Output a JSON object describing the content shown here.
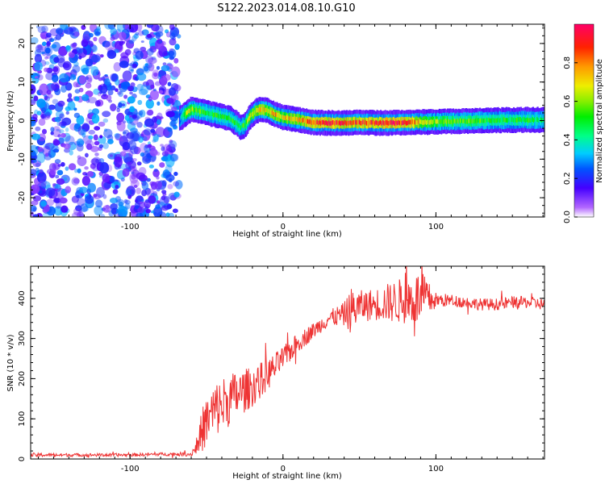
{
  "title": "S122.2023.014.08.10.G10",
  "chart_data": [
    {
      "type": "heatmap",
      "xlabel": "Height of straight line (km)",
      "ylabel": "Frequency (Hz)",
      "xlim": [
        -165,
        171
      ],
      "ylim": [
        -25,
        25
      ],
      "x_ticks": [
        -100,
        0,
        100
      ],
      "y_ticks": [
        -20,
        -10,
        0,
        10,
        20
      ],
      "colorbar": {
        "label": "Normalized spectral amplitude",
        "range": [
          0.0,
          1.0
        ],
        "ticks": [
          "0.0",
          "0.2",
          "0.4",
          "0.6",
          "0.8"
        ],
        "colormap": "gist_ncar_r"
      },
      "noise_region_x": [
        -165,
        -68
      ],
      "noise_level": 0.15,
      "signal_trace": {
        "x": [
          -68,
          -65,
          -62,
          -60,
          -55,
          -50,
          -45,
          -40,
          -35,
          -30,
          -28,
          -25,
          -22,
          -18,
          -15,
          -10,
          -5,
          0,
          10,
          20,
          30,
          40,
          50,
          60,
          70,
          80,
          90,
          100,
          120,
          140,
          160,
          171
        ],
        "frequency": [
          0.5,
          1.5,
          2.5,
          3.0,
          2.5,
          2.0,
          1.5,
          1.0,
          0.5,
          -1.0,
          -1.8,
          -1.0,
          1.0,
          2.5,
          3.0,
          2.5,
          1.5,
          0.8,
          0.2,
          -0.5,
          -0.6,
          -0.6,
          -0.5,
          -0.6,
          -0.6,
          -0.5,
          -0.4,
          -0.3,
          -0.1,
          0.1,
          0.2,
          0.2
        ],
        "amplitude": [
          0.25,
          0.55,
          0.65,
          0.6,
          0.55,
          0.5,
          0.5,
          0.5,
          0.5,
          0.5,
          0.45,
          0.55,
          0.65,
          0.7,
          0.75,
          0.7,
          0.75,
          0.7,
          0.75,
          0.9,
          0.92,
          0.9,
          0.88,
          0.9,
          0.92,
          0.9,
          0.7,
          0.6,
          0.55,
          0.5,
          0.5,
          0.45
        ]
      }
    },
    {
      "type": "line",
      "xlabel": "Height of straight line (km)",
      "ylabel": "SNR (10 * v/v)",
      "xlim": [
        -165,
        171
      ],
      "ylim": [
        0,
        480
      ],
      "x_ticks": [
        -100,
        0,
        100
      ],
      "y_ticks": [
        0,
        100,
        200,
        300,
        400
      ],
      "color": "#ee3333",
      "trend": {
        "x": [
          -165,
          -140,
          -120,
          -100,
          -80,
          -60,
          -57,
          -52,
          -45,
          -38,
          -30,
          -20,
          -10,
          0,
          10,
          20,
          30,
          40,
          45,
          50,
          60,
          70,
          80,
          90,
          100,
          110,
          120,
          130,
          140,
          150,
          160,
          171
        ],
        "y": [
          10,
          10,
          10,
          10,
          12,
          12,
          30,
          80,
          120,
          140,
          160,
          180,
          210,
          250,
          290,
          320,
          350,
          360,
          370,
          380,
          385,
          390,
          395,
          400,
          395,
          395,
          390,
          385,
          385,
          390,
          390,
          385
        ],
        "noise_amplitude": [
          5,
          4,
          4,
          4,
          4,
          5,
          20,
          60,
          70,
          70,
          60,
          50,
          40,
          30,
          25,
          20,
          20,
          30,
          60,
          40,
          40,
          50,
          60,
          70,
          20,
          15,
          15,
          15,
          15,
          15,
          15,
          15
        ]
      }
    }
  ]
}
